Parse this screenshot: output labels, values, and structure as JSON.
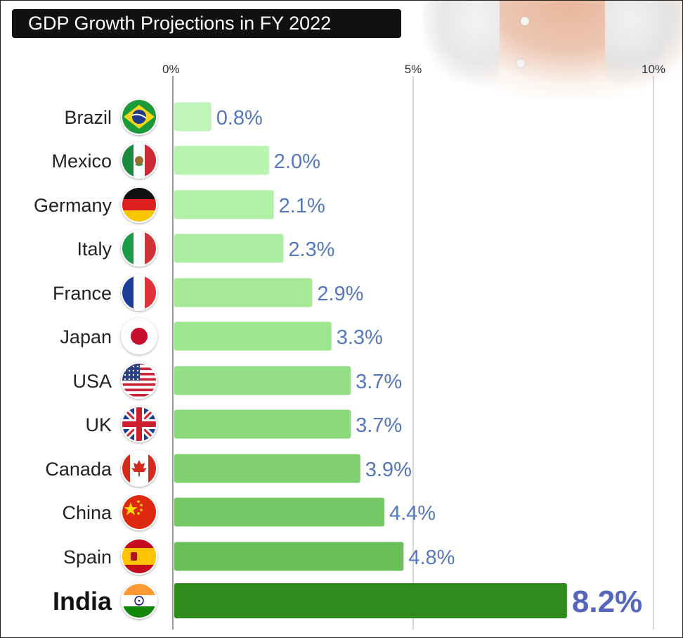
{
  "title": "GDP Growth Projections in FY 2022",
  "chart_data": {
    "type": "bar",
    "orientation": "horizontal",
    "title": "GDP Growth Projections in FY 2022",
    "categories": [
      "Brazil",
      "Mexico",
      "Germany",
      "Italy",
      "France",
      "Japan",
      "USA",
      "UK",
      "Canada",
      "China",
      "Spain",
      "India"
    ],
    "values": [
      0.8,
      2.0,
      2.1,
      2.3,
      2.9,
      3.3,
      3.7,
      3.7,
      3.9,
      4.4,
      4.8,
      8.2
    ],
    "value_labels": [
      "0.8%",
      "2.0%",
      "2.1%",
      "2.3%",
      "2.9%",
      "3.3%",
      "3.7%",
      "3.7%",
      "3.9%",
      "4.4%",
      "4.8%",
      "8.2%"
    ],
    "xlim": [
      0,
      10
    ],
    "xticks": [
      0,
      5,
      10
    ],
    "xtick_labels": [
      "0%",
      "5%",
      "10%"
    ],
    "xlabel": "",
    "ylabel": "",
    "highlight": "India",
    "flag_icons": [
      "brazil-flag-icon",
      "mexico-flag-icon",
      "germany-flag-icon",
      "italy-flag-icon",
      "france-flag-icon",
      "japan-flag-icon",
      "usa-flag-icon",
      "uk-flag-icon",
      "canada-flag-icon",
      "china-flag-icon",
      "spain-flag-icon",
      "india-flag-icon"
    ],
    "bar_colors": [
      "#bff5b8",
      "#b8f3b0",
      "#b1f0a8",
      "#abeda0",
      "#a5e998",
      "#9ee590",
      "#94de86",
      "#8bd87c",
      "#81d172",
      "#76c866",
      "#6bbf5a",
      "#2e8b1c"
    ],
    "value_color": "#5577bb"
  }
}
